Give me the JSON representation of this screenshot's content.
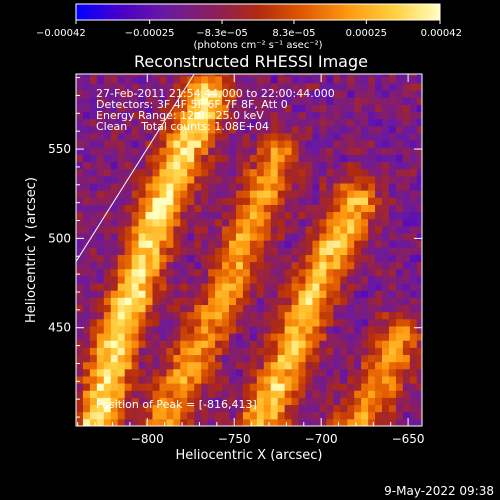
{
  "chart_data": {
    "type": "heatmap",
    "title": "Reconstructed RHESSI Image",
    "xlabel": "Heliocentric X (arcsec)",
    "ylabel": "Heliocentric Y (arcsec)",
    "xlim": [
      -841,
      -642
    ],
    "ylim": [
      395,
      592
    ],
    "xticks": [
      -800,
      -750,
      -700,
      -650
    ],
    "xtick_labels": [
      "−800",
      "−750",
      "−700",
      "−650"
    ],
    "yticks": [
      450,
      500,
      550
    ],
    "ytick_labels": [
      "450",
      "500",
      "550"
    ],
    "colorbar": {
      "min": -0.00042,
      "max": 0.00042,
      "tick_values": [
        -0.00042,
        -0.00025,
        -8.3e-05,
        8.3e-05,
        0.00025,
        0.00042
      ],
      "tick_labels": [
        "−0.00042",
        "−0.00025",
        "−8.3e−05",
        "8.3e−05",
        "0.00025",
        "0.00042"
      ],
      "units": "(photons cm⁻² s⁻¹ asec⁻²)",
      "colors": [
        "#0000ff",
        "#4a00c8",
        "#6a1aa0",
        "#8a1e60",
        "#b02a10",
        "#e05a00",
        "#ff9a10",
        "#ffd040",
        "#ffffc0"
      ]
    },
    "info_lines": [
      "27-Feb-2011 21:54:44.000 to 22:00:44.000",
      "Detectors: 3F 4F 5F 6F 7F 8F, Att 0",
      "Energy Range: 12.0 - 25.0 keV",
      "Clean    Total counts: 1.08E+04"
    ],
    "peak_text": "Position of Peak = [-816,413]",
    "limb_line": {
      "x": [
        -841,
        -773
      ],
      "y": [
        487,
        592
      ]
    },
    "grid_step_arcsec": 4,
    "ridges": [
      {
        "points": [
          [
            -830,
            395
          ],
          [
            -818,
            440
          ],
          [
            -808,
            470
          ],
          [
            -797,
            505
          ],
          [
            -783,
            540
          ],
          [
            -765,
            580
          ]
        ],
        "peak": 1.0
      },
      {
        "points": [
          [
            -790,
            400
          ],
          [
            -775,
            430
          ],
          [
            -755,
            470
          ],
          [
            -740,
            510
          ],
          [
            -725,
            545
          ]
        ],
        "peak": 0.7
      },
      {
        "points": [
          [
            -735,
            395
          ],
          [
            -720,
            430
          ],
          [
            -705,
            470
          ],
          [
            -690,
            500
          ],
          [
            -680,
            520
          ]
        ],
        "peak": 0.85
      },
      {
        "points": [
          [
            -680,
            395
          ],
          [
            -665,
            420
          ],
          [
            -655,
            445
          ]
        ],
        "peak": 0.65
      }
    ]
  },
  "footer": {
    "date_stamp": "9-May-2022 09:38"
  }
}
